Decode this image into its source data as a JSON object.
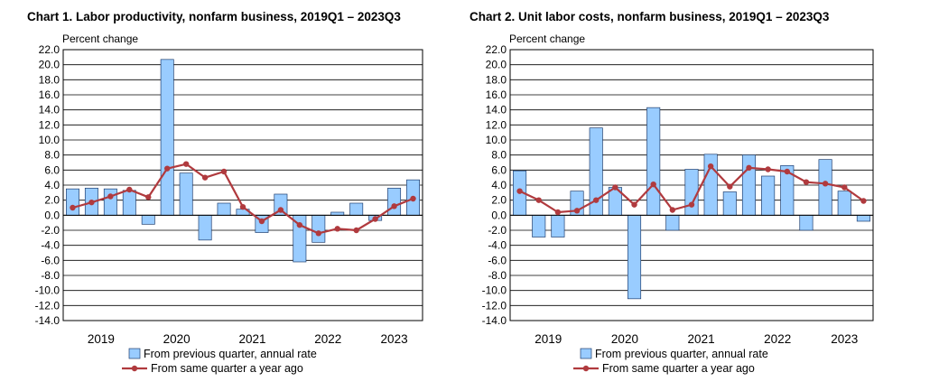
{
  "chart_data": [
    {
      "type": "bar+line",
      "title": "Chart  1. Labor productivity, nonfarm business, 2019Q1 – 2023Q3",
      "ylabel": "Percent change",
      "ylim": [
        -14,
        22
      ],
      "ytick_step": 2,
      "yticks": [
        "22.0",
        "20.0",
        "18.0",
        "16.0",
        "14.0",
        "12.0",
        "10.0",
        "8.0",
        "6.0",
        "4.0",
        "2.0",
        "0.0",
        "-2.0",
        "-4.0",
        "-6.0",
        "-8.0",
        "-10.0",
        "-12.0",
        "-14.0"
      ],
      "year_labels": [
        "2019",
        "2020",
        "2021",
        "2022",
        "2023"
      ],
      "quarters": [
        "2019Q1",
        "2019Q2",
        "2019Q3",
        "2019Q4",
        "2020Q1",
        "2020Q2",
        "2020Q3",
        "2020Q4",
        "2021Q1",
        "2021Q2",
        "2021Q3",
        "2021Q4",
        "2022Q1",
        "2022Q2",
        "2022Q3",
        "2022Q4",
        "2023Q1",
        "2023Q2",
        "2023Q3"
      ],
      "series": [
        {
          "name": "From previous quarter, annual rate",
          "kind": "bar",
          "color": "#99ccff",
          "values": [
            3.5,
            3.6,
            3.5,
            3.3,
            -1.2,
            20.7,
            5.6,
            -3.3,
            1.6,
            0.8,
            -2.3,
            2.8,
            -6.2,
            -3.6,
            0.4,
            1.6,
            -0.7,
            3.6,
            4.7
          ]
        },
        {
          "name": "From same quarter a year ago",
          "kind": "line",
          "color": "#b03a3e",
          "values": [
            1.0,
            1.7,
            2.5,
            3.4,
            2.4,
            6.2,
            6.8,
            5.0,
            5.8,
            1.1,
            -0.8,
            0.7,
            -1.3,
            -2.4,
            -1.8,
            -2.0,
            -0.5,
            1.2,
            2.2
          ]
        }
      ],
      "legend": [
        "From previous quarter, annual rate",
        "From same quarter a year ago"
      ]
    },
    {
      "type": "bar+line",
      "title": "Chart  2. Unit labor costs, nonfarm business, 2019Q1 – 2023Q3",
      "ylabel": "Percent change",
      "ylim": [
        -14,
        22
      ],
      "ytick_step": 2,
      "yticks": [
        "22.0",
        "20.0",
        "18.0",
        "16.0",
        "14.0",
        "12.0",
        "10.0",
        "8.0",
        "6.0",
        "4.0",
        "2.0",
        "0.0",
        "-2.0",
        "-4.0",
        "-6.0",
        "-8.0",
        "-10.0",
        "-12.0",
        "-14.0"
      ],
      "year_labels": [
        "2019",
        "2020",
        "2021",
        "2022",
        "2023"
      ],
      "quarters": [
        "2019Q1",
        "2019Q2",
        "2019Q3",
        "2019Q4",
        "2020Q1",
        "2020Q2",
        "2020Q3",
        "2020Q4",
        "2021Q1",
        "2021Q2",
        "2021Q3",
        "2021Q4",
        "2022Q1",
        "2022Q2",
        "2022Q3",
        "2022Q4",
        "2023Q1",
        "2023Q2",
        "2023Q3"
      ],
      "series": [
        {
          "name": "From previous quarter, annual rate",
          "kind": "bar",
          "color": "#99ccff",
          "values": [
            5.9,
            -2.9,
            -2.9,
            3.2,
            11.6,
            3.7,
            -11.1,
            14.3,
            -2.0,
            6.1,
            8.1,
            3.1,
            8.0,
            5.2,
            6.6,
            -2.0,
            7.4,
            3.2,
            -0.8
          ]
        },
        {
          "name": "From same quarter a year ago",
          "kind": "line",
          "color": "#b03a3e",
          "values": [
            3.2,
            2.0,
            0.4,
            0.6,
            2.0,
            3.7,
            1.4,
            4.1,
            0.7,
            1.4,
            6.5,
            3.8,
            6.3,
            6.1,
            5.8,
            4.4,
            4.2,
            3.7,
            1.9
          ]
        }
      ],
      "legend": [
        "From previous quarter, annual rate",
        "From same quarter a year ago"
      ]
    }
  ]
}
